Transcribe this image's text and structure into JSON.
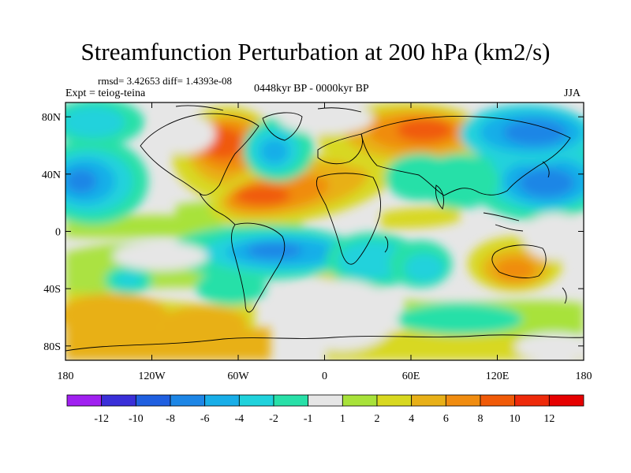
{
  "figure": {
    "title": "Streamfunction Perturbation at 200 hPa (km2/s)",
    "stats": "rmsd= 3.42653  diff= 1.4393e-08",
    "experiment": "Expt = teiog-teina",
    "period": "0448kyr BP - 0000kyr BP",
    "season": "JJA"
  },
  "chart_data": {
    "type": "heatmap",
    "projection": "cylindrical equidistant (global)",
    "variable": "streamfunction perturbation",
    "units": "km2/s",
    "level": "200 hPa",
    "xlim": [
      -180,
      180
    ],
    "ylim": [
      -90,
      90
    ],
    "x_ticks": [
      {
        "value": -180,
        "label": "180"
      },
      {
        "value": -120,
        "label": "120W"
      },
      {
        "value": -60,
        "label": "60W"
      },
      {
        "value": 0,
        "label": "0"
      },
      {
        "value": 60,
        "label": "60E"
      },
      {
        "value": 120,
        "label": "120E"
      },
      {
        "value": 180,
        "label": "180"
      }
    ],
    "y_ticks": [
      {
        "value": 80,
        "label": "80N"
      },
      {
        "value": 40,
        "label": "40N"
      },
      {
        "value": 0,
        "label": "0"
      },
      {
        "value": -40,
        "label": "40S"
      },
      {
        "value": -80,
        "label": "80S"
      }
    ],
    "colorbar": {
      "labels": [
        "-12",
        "-10",
        "-8",
        "-6",
        "-4",
        "-2",
        "-1",
        "1",
        "2",
        "4",
        "6",
        "8",
        "10",
        "12"
      ],
      "levels": [
        -12,
        -10,
        -8,
        -6,
        -4,
        -2,
        -1,
        1,
        2,
        4,
        6,
        8,
        10,
        12
      ],
      "colors": [
        "#a020f0",
        "#3a2fd8",
        "#1f5fe0",
        "#1d86e6",
        "#18aee8",
        "#20d2dc",
        "#28e0a8",
        "#e6e6e6",
        "#a8e23a",
        "#d8d820",
        "#e8b018",
        "#f08c10",
        "#f05a08",
        "#ee2a0a",
        "#e60000"
      ]
    },
    "features": [
      {
        "name": "North Atlantic / North America positive anomaly",
        "lon": -75,
        "lat": 50,
        "value": 9
      },
      {
        "name": "Subtropical Atlantic positive anomaly",
        "lon": -40,
        "lat": 25,
        "value": 9
      },
      {
        "name": "Siberian positive anomaly",
        "lon": 60,
        "lat": 65,
        "value": 10
      },
      {
        "name": "Australian positive anomaly",
        "lon": 135,
        "lat": -22,
        "value": 8
      },
      {
        "name": "Central North Atlantic negative anomaly",
        "lon": -30,
        "lat": 55,
        "value": -6
      },
      {
        "name": "North Pacific negative anomaly",
        "lon": 165,
        "lat": 40,
        "value": -9
      },
      {
        "name": "Eastern Siberia negative anomaly",
        "lon": 140,
        "lat": 65,
        "value": -8
      },
      {
        "name": "Eastern Pacific negative anomaly",
        "lon": -165,
        "lat": 40,
        "value": -7
      },
      {
        "name": "South Atlantic / Southern Africa negative anomaly",
        "lon": -25,
        "lat": -18,
        "value": -5
      },
      {
        "name": "Southern Ocean positive anomaly",
        "lon": -40,
        "lat": -60,
        "value": 5
      }
    ]
  }
}
